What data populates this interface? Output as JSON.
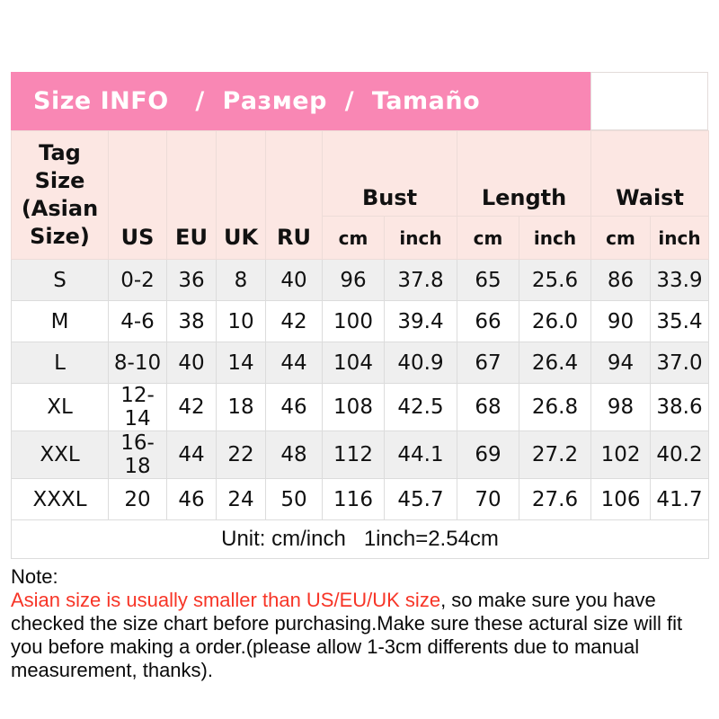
{
  "title_bar": {
    "text": "Size INFO   /  Размер  /  Tamaño"
  },
  "table": {
    "header": {
      "tag_size": "Tag Size\n(Asian\nSize)",
      "regions": [
        "US",
        "EU",
        "UK",
        "RU"
      ],
      "groups": [
        "Bust",
        "Length",
        "Waist"
      ],
      "sub_cm": "cm",
      "sub_inch": "inch"
    },
    "rows": [
      {
        "tag": "S",
        "us": "0-2",
        "eu": "36",
        "uk": "8",
        "ru": "40",
        "bust_cm": "96",
        "bust_in": "37.8",
        "len_cm": "65",
        "len_in": "25.6",
        "waist_cm": "86",
        "waist_in": "33.9"
      },
      {
        "tag": "M",
        "us": "4-6",
        "eu": "38",
        "uk": "10",
        "ru": "42",
        "bust_cm": "100",
        "bust_in": "39.4",
        "len_cm": "66",
        "len_in": "26.0",
        "waist_cm": "90",
        "waist_in": "35.4"
      },
      {
        "tag": "L",
        "us": "8-10",
        "eu": "40",
        "uk": "14",
        "ru": "44",
        "bust_cm": "104",
        "bust_in": "40.9",
        "len_cm": "67",
        "len_in": "26.4",
        "waist_cm": "94",
        "waist_in": "37.0"
      },
      {
        "tag": "XL",
        "us": "12-14",
        "eu": "42",
        "uk": "18",
        "ru": "46",
        "bust_cm": "108",
        "bust_in": "42.5",
        "len_cm": "68",
        "len_in": "26.8",
        "waist_cm": "98",
        "waist_in": "38.6"
      },
      {
        "tag": "XXL",
        "us": "16-18",
        "eu": "44",
        "uk": "22",
        "ru": "48",
        "bust_cm": "112",
        "bust_in": "44.1",
        "len_cm": "69",
        "len_in": "27.2",
        "waist_cm": "102",
        "waist_in": "40.2"
      },
      {
        "tag": "XXXL",
        "us": "20",
        "eu": "46",
        "uk": "24",
        "ru": "50",
        "bust_cm": "116",
        "bust_in": "45.7",
        "len_cm": "70",
        "len_in": "27.6",
        "waist_cm": "106",
        "waist_in": "41.7"
      }
    ],
    "unit_note": "Unit: cm/inch   1inch=2.54cm"
  },
  "note": {
    "label": "Note:",
    "red_text": "Asian size is usually smaller than US/EU/UK size",
    "black_text": ", so make sure you have checked the size chart before purchasing.Make sure these actural size will fit you before making a order.(please allow 1-3cm differents due to manual measurement, thanks)."
  },
  "colors": {
    "pink_bar": "#f987b4",
    "header_pink": "#fce7e3",
    "row_gray": "#efefef",
    "note_red": "#f73527"
  }
}
